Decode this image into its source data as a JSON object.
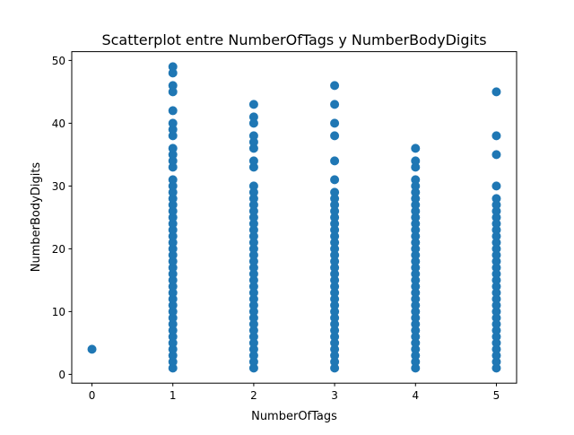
{
  "chart_data": {
    "type": "scatter",
    "title": "Scatterplot entre NumberOfTags y NumberBodyDigits",
    "xlabel": "NumberOfTags",
    "ylabel": "NumberBodyDigits",
    "xlim": [
      -0.25,
      5.25
    ],
    "ylim": [
      -1.4,
      51.4
    ],
    "xticks": [
      0,
      1,
      2,
      3,
      4,
      5
    ],
    "yticks": [
      0,
      10,
      20,
      30,
      40,
      50
    ],
    "grid": false,
    "point_color": "#1f77b4",
    "columns": [
      {
        "x": 0,
        "dense_range": null,
        "outliers": [
          4
        ]
      },
      {
        "x": 1,
        "dense_range": [
          1,
          28
        ],
        "outliers": [
          29,
          30,
          31,
          33,
          34,
          35,
          36,
          38,
          39,
          40,
          42,
          45,
          46,
          48,
          49
        ]
      },
      {
        "x": 2,
        "dense_range": [
          1,
          28
        ],
        "outliers": [
          29,
          30,
          33,
          34,
          36,
          37,
          38,
          40,
          41,
          43
        ]
      },
      {
        "x": 3,
        "dense_range": [
          1,
          28
        ],
        "outliers": [
          29,
          31,
          34,
          38,
          40,
          43,
          46
        ]
      },
      {
        "x": 4,
        "dense_range": [
          1,
          28
        ],
        "outliers": [
          29,
          30,
          31,
          33,
          34,
          36
        ]
      },
      {
        "x": 5,
        "dense_range": [
          1,
          28
        ],
        "outliers": [
          30,
          35,
          38,
          45
        ]
      }
    ]
  }
}
